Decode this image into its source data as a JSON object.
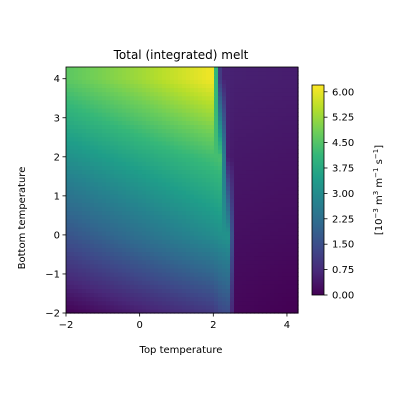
{
  "chart_data": {
    "type": "heatmap",
    "title": "Total (integrated) melt",
    "xlabel": "Top temperature",
    "ylabel": "Bottom temperature",
    "xlim": [
      -2,
      4.3
    ],
    "ylim": [
      -2,
      4.3
    ],
    "xticks": [
      "−2",
      "0",
      "2",
      "4"
    ],
    "xtick_values": [
      -2,
      0,
      2,
      4
    ],
    "yticks": [
      "−2",
      "−1",
      "0",
      "1",
      "2",
      "3",
      "4"
    ],
    "ytick_values": [
      -2,
      -1,
      0,
      1,
      2,
      3,
      4
    ],
    "colorbar": {
      "label_parts": [
        "[10",
        "−3",
        " m",
        "3",
        " m",
        "−1",
        " s",
        "−1",
        "]"
      ],
      "ticks": [
        "0.00",
        "0.75",
        "1.50",
        "2.25",
        "3.00",
        "3.75",
        "4.50",
        "5.25",
        "6.00"
      ],
      "tick_values": [
        0,
        0.75,
        1.5,
        2.25,
        3.0,
        3.75,
        4.5,
        5.25,
        6.0
      ],
      "range": [
        0,
        6.2
      ],
      "colormap": "viridis"
    },
    "grid": false,
    "field_samples": {
      "x": [
        -2,
        0,
        2,
        2.2,
        2.4,
        2.6,
        4
      ],
      "y": [
        -2,
        0,
        2,
        4
      ],
      "melt": [
        [
          0.0,
          0.5,
          1.0,
          1.3,
          1.4,
          0.1,
          0.0
        ],
        [
          1.6,
          2.3,
          3.0,
          3.1,
          3.2,
          0.25,
          0.2
        ],
        [
          3.1,
          3.7,
          4.3,
          4.4,
          0.5,
          0.4,
          0.35
        ],
        [
          4.6,
          5.3,
          6.1,
          0.6,
          0.6,
          0.55,
          0.5
        ]
      ]
    }
  }
}
